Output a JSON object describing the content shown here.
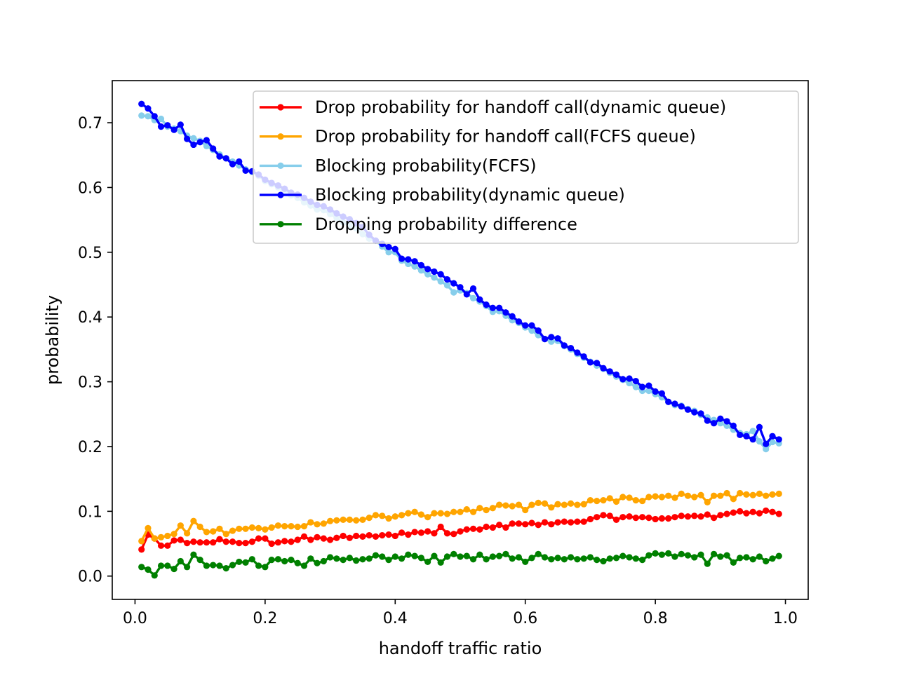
{
  "chart_data": {
    "type": "line",
    "title": "",
    "xlabel": "handoff traffic ratio",
    "ylabel": "probability",
    "xlim": [
      -0.035,
      1.035
    ],
    "ylim": [
      -0.036,
      0.765
    ],
    "xticks": [
      0.0,
      0.2,
      0.4,
      0.6,
      0.8,
      1.0
    ],
    "xtick_labels": [
      "0.0",
      "0.2",
      "0.4",
      "0.6",
      "0.8",
      "1.0"
    ],
    "yticks": [
      0.0,
      0.1,
      0.2,
      0.3,
      0.4,
      0.5,
      0.6,
      0.7
    ],
    "ytick_labels": [
      "0.0",
      "0.1",
      "0.2",
      "0.3",
      "0.4",
      "0.5",
      "0.6",
      "0.7"
    ],
    "grid": false,
    "legend_position": "upper-right",
    "x": [
      0.01,
      0.02,
      0.03,
      0.04,
      0.05,
      0.06,
      0.07,
      0.08,
      0.09,
      0.1,
      0.11,
      0.12,
      0.13,
      0.14,
      0.15,
      0.16,
      0.17,
      0.18,
      0.19,
      0.2,
      0.21,
      0.22,
      0.23,
      0.24,
      0.25,
      0.26,
      0.27,
      0.28,
      0.29,
      0.3,
      0.31,
      0.32,
      0.33,
      0.34,
      0.35,
      0.36,
      0.37,
      0.38,
      0.39,
      0.4,
      0.41,
      0.42,
      0.43,
      0.44,
      0.45,
      0.46,
      0.47,
      0.48,
      0.49,
      0.5,
      0.51,
      0.52,
      0.53,
      0.54,
      0.55,
      0.56,
      0.57,
      0.58,
      0.59,
      0.6,
      0.61,
      0.62,
      0.63,
      0.64,
      0.65,
      0.66,
      0.67,
      0.68,
      0.69,
      0.7,
      0.71,
      0.72,
      0.73,
      0.74,
      0.75,
      0.76,
      0.77,
      0.78,
      0.79,
      0.8,
      0.81,
      0.82,
      0.83,
      0.84,
      0.85,
      0.86,
      0.87,
      0.88,
      0.89,
      0.9,
      0.91,
      0.92,
      0.93,
      0.94,
      0.95,
      0.96,
      0.97,
      0.98,
      0.99
    ],
    "series": [
      {
        "name": "Drop probability for handoff call(dynamic queue)",
        "color": "#ff0000",
        "values": [
          0.041,
          0.064,
          0.058,
          0.047,
          0.047,
          0.055,
          0.056,
          0.051,
          0.053,
          0.052,
          0.052,
          0.052,
          0.057,
          0.053,
          0.053,
          0.051,
          0.051,
          0.053,
          0.058,
          0.058,
          0.05,
          0.052,
          0.054,
          0.053,
          0.056,
          0.061,
          0.056,
          0.06,
          0.058,
          0.056,
          0.059,
          0.062,
          0.059,
          0.062,
          0.061,
          0.063,
          0.061,
          0.063,
          0.064,
          0.062,
          0.067,
          0.064,
          0.068,
          0.067,
          0.069,
          0.066,
          0.076,
          0.066,
          0.065,
          0.069,
          0.072,
          0.073,
          0.072,
          0.076,
          0.075,
          0.079,
          0.075,
          0.081,
          0.081,
          0.08,
          0.082,
          0.079,
          0.083,
          0.08,
          0.083,
          0.084,
          0.083,
          0.084,
          0.084,
          0.088,
          0.091,
          0.094,
          0.093,
          0.087,
          0.091,
          0.092,
          0.09,
          0.091,
          0.09,
          0.088,
          0.089,
          0.089,
          0.091,
          0.093,
          0.092,
          0.093,
          0.092,
          0.095,
          0.09,
          0.094,
          0.096,
          0.098,
          0.1,
          0.097,
          0.099,
          0.097,
          0.101,
          0.099,
          0.096
        ]
      },
      {
        "name": "Drop probability for handoff call(FCFS queue)",
        "color": "#ffa500",
        "values": [
          0.054,
          0.074,
          0.058,
          0.06,
          0.062,
          0.065,
          0.078,
          0.066,
          0.085,
          0.076,
          0.068,
          0.069,
          0.073,
          0.065,
          0.07,
          0.073,
          0.073,
          0.075,
          0.074,
          0.072,
          0.075,
          0.078,
          0.077,
          0.077,
          0.076,
          0.077,
          0.083,
          0.08,
          0.081,
          0.085,
          0.086,
          0.087,
          0.087,
          0.086,
          0.087,
          0.09,
          0.094,
          0.093,
          0.089,
          0.092,
          0.094,
          0.097,
          0.099,
          0.095,
          0.091,
          0.097,
          0.097,
          0.096,
          0.099,
          0.099,
          0.103,
          0.099,
          0.105,
          0.102,
          0.105,
          0.11,
          0.109,
          0.108,
          0.11,
          0.102,
          0.11,
          0.113,
          0.112,
          0.106,
          0.111,
          0.11,
          0.112,
          0.11,
          0.111,
          0.117,
          0.116,
          0.117,
          0.12,
          0.115,
          0.122,
          0.121,
          0.117,
          0.116,
          0.122,
          0.123,
          0.122,
          0.124,
          0.121,
          0.127,
          0.124,
          0.122,
          0.125,
          0.114,
          0.124,
          0.124,
          0.128,
          0.119,
          0.128,
          0.126,
          0.125,
          0.127,
          0.124,
          0.126,
          0.127
        ]
      },
      {
        "name": "Blocking probability(FCFS)",
        "color": "#87ceeb",
        "values": [
          0.711,
          0.71,
          0.704,
          0.706,
          0.694,
          0.691,
          0.687,
          0.68,
          0.676,
          0.672,
          0.664,
          0.658,
          0.651,
          0.645,
          0.64,
          0.634,
          0.628,
          0.624,
          0.618,
          0.61,
          0.605,
          0.6,
          0.594,
          0.588,
          0.584,
          0.577,
          0.572,
          0.566,
          0.565,
          0.559,
          0.553,
          0.546,
          0.541,
          0.537,
          0.528,
          0.521,
          0.518,
          0.509,
          0.5,
          0.5,
          0.487,
          0.482,
          0.478,
          0.472,
          0.466,
          0.461,
          0.455,
          0.449,
          0.438,
          0.441,
          0.437,
          0.429,
          0.424,
          0.417,
          0.408,
          0.409,
          0.402,
          0.395,
          0.391,
          0.384,
          0.379,
          0.372,
          0.366,
          0.362,
          0.363,
          0.355,
          0.35,
          0.343,
          0.337,
          0.331,
          0.325,
          0.32,
          0.314,
          0.308,
          0.303,
          0.298,
          0.292,
          0.286,
          0.286,
          0.281,
          0.276,
          0.269,
          0.264,
          0.263,
          0.258,
          0.255,
          0.249,
          0.245,
          0.241,
          0.236,
          0.232,
          0.226,
          0.221,
          0.219,
          0.224,
          0.208,
          0.196,
          0.207,
          0.205
        ]
      },
      {
        "name": "Blocking probability(dynamic queue)",
        "color": "#0000ff",
        "values": [
          0.729,
          0.722,
          0.71,
          0.694,
          0.696,
          0.689,
          0.697,
          0.675,
          0.666,
          0.67,
          0.673,
          0.66,
          0.648,
          0.645,
          0.636,
          0.64,
          0.626,
          0.625,
          0.62,
          0.612,
          0.607,
          0.603,
          0.598,
          0.592,
          0.589,
          0.584,
          0.578,
          0.573,
          0.571,
          0.566,
          0.56,
          0.555,
          0.551,
          0.545,
          0.539,
          0.527,
          0.518,
          0.513,
          0.508,
          0.505,
          0.49,
          0.489,
          0.486,
          0.48,
          0.474,
          0.47,
          0.466,
          0.458,
          0.452,
          0.446,
          0.435,
          0.444,
          0.427,
          0.419,
          0.414,
          0.414,
          0.407,
          0.401,
          0.393,
          0.387,
          0.387,
          0.379,
          0.366,
          0.369,
          0.367,
          0.356,
          0.352,
          0.345,
          0.339,
          0.33,
          0.329,
          0.321,
          0.316,
          0.311,
          0.304,
          0.305,
          0.301,
          0.292,
          0.294,
          0.285,
          0.282,
          0.269,
          0.266,
          0.262,
          0.257,
          0.253,
          0.251,
          0.24,
          0.236,
          0.243,
          0.239,
          0.232,
          0.218,
          0.216,
          0.211,
          0.23,
          0.204,
          0.216,
          0.211
        ]
      },
      {
        "name": "Dropping probability difference",
        "color": "#008000",
        "values": [
          0.014,
          0.01,
          0.001,
          0.016,
          0.016,
          0.011,
          0.023,
          0.014,
          0.033,
          0.025,
          0.016,
          0.017,
          0.016,
          0.012,
          0.017,
          0.022,
          0.021,
          0.026,
          0.016,
          0.014,
          0.025,
          0.026,
          0.023,
          0.025,
          0.02,
          0.016,
          0.027,
          0.02,
          0.023,
          0.029,
          0.027,
          0.025,
          0.028,
          0.024,
          0.026,
          0.027,
          0.032,
          0.03,
          0.025,
          0.03,
          0.027,
          0.033,
          0.031,
          0.028,
          0.022,
          0.031,
          0.021,
          0.03,
          0.034,
          0.03,
          0.031,
          0.026,
          0.033,
          0.026,
          0.03,
          0.031,
          0.034,
          0.027,
          0.029,
          0.022,
          0.028,
          0.034,
          0.029,
          0.026,
          0.028,
          0.026,
          0.029,
          0.026,
          0.027,
          0.029,
          0.025,
          0.023,
          0.027,
          0.028,
          0.031,
          0.029,
          0.027,
          0.025,
          0.032,
          0.035,
          0.033,
          0.035,
          0.03,
          0.034,
          0.032,
          0.029,
          0.033,
          0.019,
          0.034,
          0.03,
          0.032,
          0.021,
          0.028,
          0.029,
          0.026,
          0.03,
          0.023,
          0.027,
          0.031
        ]
      }
    ]
  }
}
